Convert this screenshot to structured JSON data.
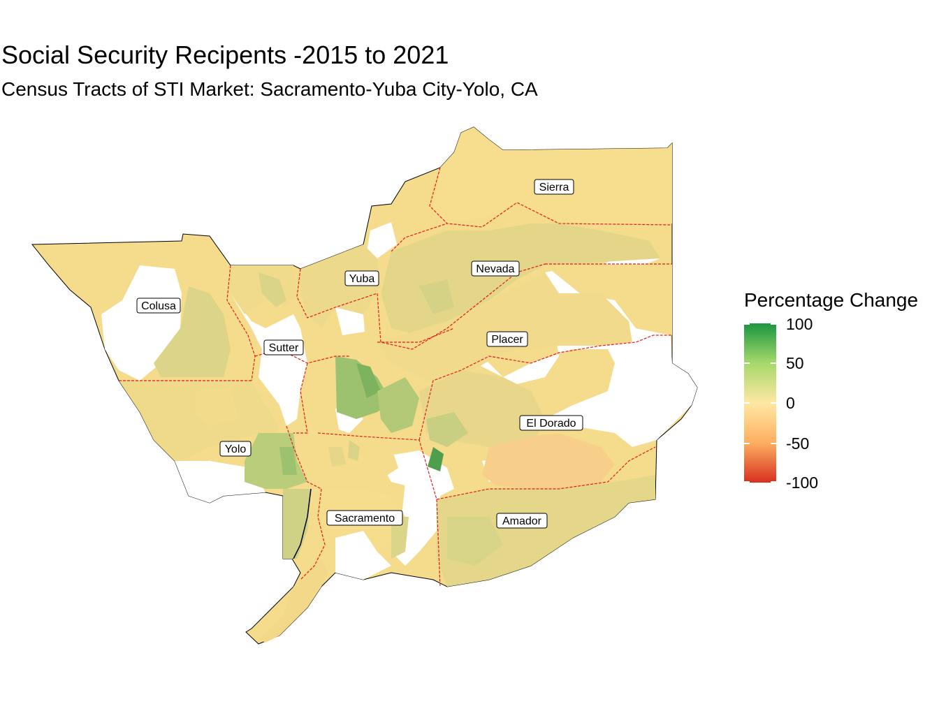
{
  "title": "Social Security Recipents -2015 to 2021",
  "subtitle": "Census Tracts of STI Market: Sacramento-Yuba City-Yolo, CA",
  "legend": {
    "title": "Percentage Change",
    "range": [
      -100,
      100
    ],
    "breaks": [
      "100",
      "50",
      "0",
      "-50",
      "-100"
    ],
    "colors": {
      "high": "#1a9641",
      "mid_high": "#a6d96a",
      "mid": "#ffe8a3",
      "mid_low": "#fdae61",
      "low": "#d7301f"
    }
  },
  "counties": {
    "sierra": "Sierra",
    "nevada": "Nevada",
    "yuba": "Yuba",
    "colusa": "Colusa",
    "sutter": "Sutter",
    "placer": "Placer",
    "el_dorado": "El Dorado",
    "yolo": "Yolo",
    "sacramento": "Sacramento",
    "amador": "Amador"
  },
  "map_colors": {
    "light": "#f7dd8e",
    "yellow": "#f4dc8c",
    "olive": "#dcd589",
    "green": "#b9cd7a",
    "strong_green": "#9dc26f",
    "orange": "#f8cf8a",
    "border": "#e41a1c",
    "no_data": "#ffffff"
  }
}
